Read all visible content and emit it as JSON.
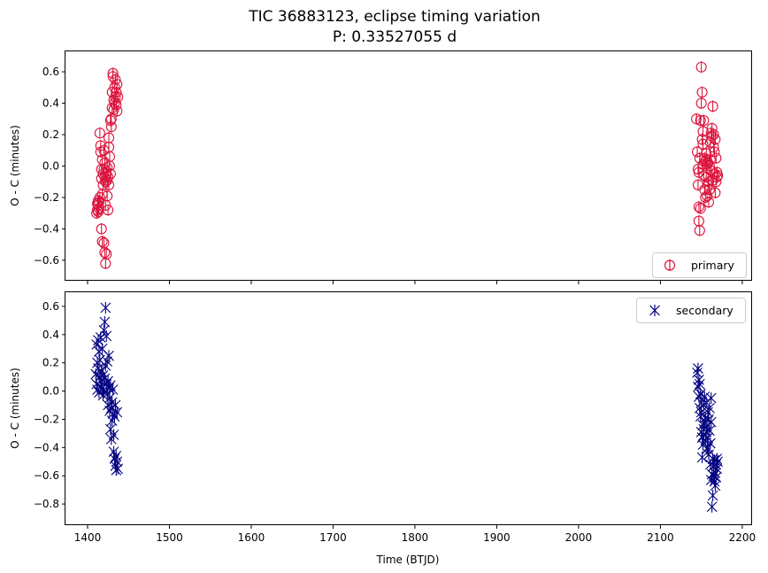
{
  "figure": {
    "title_line1": "TIC 36883123, eclipse timing variation",
    "title_line2": "P: 0.33527055 d"
  },
  "chart_data": [
    {
      "type": "scatter",
      "panel": "top",
      "ylabel": "O - C (minutes)",
      "xlabel": "",
      "xlim": [
        1373,
        2212
      ],
      "ylim": [
        -0.73,
        0.73
      ],
      "xticks": [
        1400,
        1500,
        1600,
        1700,
        1800,
        1900,
        2000,
        2100,
        2200
      ],
      "xtick_labels_shown": false,
      "yticks": [
        -0.6,
        -0.4,
        -0.2,
        0.0,
        0.2,
        0.4,
        0.6
      ],
      "ytick_labels": [
        "−0.6",
        "−0.4",
        "−0.2",
        "0.0",
        "0.2",
        "0.4",
        "0.6"
      ],
      "grid": false,
      "legend": {
        "entries": [
          "primary"
        ],
        "placement": "lower right"
      },
      "series": [
        {
          "name": "primary",
          "marker": "open-circle-errorbar",
          "color": "#dc143c",
          "points": [
            [
              1411,
              -0.3
            ],
            [
              1412,
              -0.28
            ],
            [
              1413,
              -0.25
            ],
            [
              1413,
              -0.22
            ],
            [
              1414,
              -0.27
            ],
            [
              1415,
              -0.2
            ],
            [
              1415,
              0.21
            ],
            [
              1416,
              0.13
            ],
            [
              1416,
              0.09
            ],
            [
              1417,
              -0.02
            ],
            [
              1417,
              -0.4
            ],
            [
              1418,
              -0.48
            ],
            [
              1418,
              -0.18
            ],
            [
              1419,
              -0.12
            ],
            [
              1419,
              -0.05
            ],
            [
              1420,
              -0.49
            ],
            [
              1420,
              0.1
            ],
            [
              1421,
              -0.55
            ],
            [
              1421,
              0.02
            ],
            [
              1422,
              -0.62
            ],
            [
              1422,
              -0.1
            ],
            [
              1423,
              -0.56
            ],
            [
              1423,
              -0.05
            ],
            [
              1424,
              -0.01
            ],
            [
              1424,
              -0.19
            ],
            [
              1425,
              -0.07
            ],
            [
              1425,
              -0.28
            ],
            [
              1426,
              0.12
            ],
            [
              1426,
              -0.12
            ],
            [
              1427,
              0.06
            ],
            [
              1427,
              0.0
            ],
            [
              1428,
              0.29
            ],
            [
              1428,
              -0.05
            ],
            [
              1429,
              0.3
            ],
            [
              1429,
              0.25
            ],
            [
              1430,
              0.37
            ],
            [
              1430,
              0.47
            ],
            [
              1431,
              0.57
            ],
            [
              1431,
              0.59
            ],
            [
              1432,
              0.42
            ],
            [
              1432,
              0.36
            ],
            [
              1433,
              0.5
            ],
            [
              1433,
              0.4
            ],
            [
              1434,
              0.55
            ],
            [
              1434,
              0.44
            ],
            [
              1435,
              0.47
            ],
            [
              1435,
              0.39
            ],
            [
              1436,
              0.35
            ],
            [
              1436,
              0.52
            ],
            [
              1437,
              0.44
            ],
            [
              1420,
              -0.02
            ],
            [
              1422,
              -0.25
            ],
            [
              1424,
              -0.09
            ],
            [
              1426,
              0.18
            ],
            [
              1414,
              -0.23
            ],
            [
              1413,
              -0.29
            ],
            [
              1412,
              -0.24
            ],
            [
              1417,
              -0.08
            ],
            [
              1418,
              0.04
            ],
            [
              1421,
              -0.07
            ],
            [
              2144,
              0.3
            ],
            [
              2145,
              0.09
            ],
            [
              2146,
              -0.02
            ],
            [
              2146,
              -0.12
            ],
            [
              2147,
              -0.35
            ],
            [
              2147,
              -0.26
            ],
            [
              2148,
              -0.41
            ],
            [
              2148,
              0.05
            ],
            [
              2149,
              -0.27
            ],
            [
              2149,
              0.29
            ],
            [
              2150,
              0.63
            ],
            [
              2150,
              0.4
            ],
            [
              2151,
              0.47
            ],
            [
              2151,
              0.17
            ],
            [
              2152,
              0.22
            ],
            [
              2152,
              0.01
            ],
            [
              2153,
              -0.06
            ],
            [
              2153,
              0.29
            ],
            [
              2154,
              0.05
            ],
            [
              2154,
              -0.15
            ],
            [
              2155,
              0.03
            ],
            [
              2155,
              -0.2
            ],
            [
              2156,
              0.08
            ],
            [
              2156,
              -0.07
            ],
            [
              2157,
              0.01
            ],
            [
              2157,
              -0.19
            ],
            [
              2158,
              -0.12
            ],
            [
              2158,
              0.02
            ],
            [
              2159,
              -0.23
            ],
            [
              2159,
              -0.1
            ],
            [
              2160,
              0.0
            ],
            [
              2160,
              -0.15
            ],
            [
              2161,
              0.15
            ],
            [
              2161,
              0.04
            ],
            [
              2162,
              0.21
            ],
            [
              2162,
              -0.03
            ],
            [
              2163,
              0.19
            ],
            [
              2163,
              0.24
            ],
            [
              2164,
              0.38
            ],
            [
              2164,
              -0.09
            ],
            [
              2165,
              0.2
            ],
            [
              2165,
              0.12
            ],
            [
              2166,
              0.09
            ],
            [
              2166,
              -0.05
            ],
            [
              2167,
              0.17
            ],
            [
              2167,
              -0.17
            ],
            [
              2168,
              0.05
            ],
            [
              2168,
              -0.1
            ],
            [
              2169,
              -0.04
            ],
            [
              2169,
              -0.07
            ],
            [
              2170,
              -0.06
            ],
            [
              2152,
              0.14
            ],
            [
              2156,
              0.04
            ],
            [
              2147,
              -0.04
            ]
          ]
        }
      ]
    },
    {
      "type": "scatter",
      "panel": "bottom",
      "ylabel": "O - C (minutes)",
      "xlabel": "Time (BTJD)",
      "xlim": [
        1373,
        2212
      ],
      "ylim": [
        -0.95,
        0.7
      ],
      "xticks": [
        1400,
        1500,
        1600,
        1700,
        1800,
        1900,
        2000,
        2100,
        2200
      ],
      "xtick_labels": [
        "1400",
        "1500",
        "1600",
        "1700",
        "1800",
        "1900",
        "2000",
        "2100",
        "2200"
      ],
      "yticks": [
        -0.8,
        -0.6,
        -0.4,
        -0.2,
        0.0,
        0.2,
        0.4,
        0.6
      ],
      "ytick_labels": [
        "−0.8",
        "−0.6",
        "−0.4",
        "−0.2",
        "0.0",
        "0.2",
        "0.4",
        "0.6"
      ],
      "grid": false,
      "legend": {
        "entries": [
          "secondary"
        ],
        "placement": "upper right"
      },
      "series": [
        {
          "name": "secondary",
          "marker": "x-errorbar",
          "color": "#000080",
          "points": [
            [
              1410,
              0.12
            ],
            [
              1411,
              0.33
            ],
            [
              1411,
              0.05
            ],
            [
              1412,
              0.2
            ],
            [
              1412,
              0.01
            ],
            [
              1413,
              0.36
            ],
            [
              1413,
              0.16
            ],
            [
              1414,
              0.28
            ],
            [
              1414,
              -0.01
            ],
            [
              1415,
              0.22
            ],
            [
              1415,
              0.1
            ],
            [
              1416,
              0.38
            ],
            [
              1416,
              0.03
            ],
            [
              1417,
              0.14
            ],
            [
              1417,
              0.07
            ],
            [
              1418,
              0.02
            ],
            [
              1418,
              0.3
            ],
            [
              1419,
              0.11
            ],
            [
              1419,
              -0.03
            ],
            [
              1420,
              0.43
            ],
            [
              1420,
              0.01
            ],
            [
              1421,
              0.49
            ],
            [
              1421,
              0.09
            ],
            [
              1422,
              0.59
            ],
            [
              1422,
              0.18
            ],
            [
              1423,
              0.05
            ],
            [
              1423,
              0.39
            ],
            [
              1424,
              0.21
            ],
            [
              1424,
              -0.02
            ],
            [
              1425,
              0.07
            ],
            [
              1425,
              -0.1
            ],
            [
              1426,
              0.25
            ],
            [
              1426,
              0.02
            ],
            [
              1427,
              -0.05
            ],
            [
              1427,
              -0.14
            ],
            [
              1428,
              0.04
            ],
            [
              1428,
              -0.27
            ],
            [
              1429,
              -0.12
            ],
            [
              1429,
              -0.34
            ],
            [
              1430,
              -0.21
            ],
            [
              1430,
              -0.08
            ],
            [
              1431,
              -0.16
            ],
            [
              1431,
              0.01
            ],
            [
              1432,
              -0.31
            ],
            [
              1432,
              -0.43
            ],
            [
              1433,
              -0.18
            ],
            [
              1433,
              -0.48
            ],
            [
              1434,
              -0.53
            ],
            [
              1434,
              -0.1
            ],
            [
              1435,
              -0.46
            ],
            [
              1435,
              -0.56
            ],
            [
              1436,
              -0.5
            ],
            [
              1436,
              -0.15
            ],
            [
              1437,
              -0.55
            ],
            [
              2145,
              0.13
            ],
            [
              2146,
              0.03
            ],
            [
              2146,
              0.16
            ],
            [
              2147,
              -0.04
            ],
            [
              2147,
              0.08
            ],
            [
              2148,
              -0.12
            ],
            [
              2148,
              0.05
            ],
            [
              2149,
              -0.18
            ],
            [
              2149,
              -0.02
            ],
            [
              2150,
              -0.29
            ],
            [
              2150,
              -0.08
            ],
            [
              2151,
              -0.47
            ],
            [
              2151,
              -0.33
            ],
            [
              2152,
              -0.24
            ],
            [
              2152,
              -0.38
            ],
            [
              2153,
              -0.1
            ],
            [
              2153,
              -0.31
            ],
            [
              2154,
              -0.04
            ],
            [
              2154,
              -0.22
            ],
            [
              2155,
              -0.19
            ],
            [
              2155,
              -0.35
            ],
            [
              2156,
              -0.08
            ],
            [
              2156,
              -0.29
            ],
            [
              2157,
              -0.41
            ],
            [
              2157,
              -0.25
            ],
            [
              2158,
              -0.15
            ],
            [
              2158,
              -0.33
            ],
            [
              2159,
              -0.2
            ],
            [
              2159,
              -0.45
            ],
            [
              2160,
              -0.12
            ],
            [
              2160,
              -0.28
            ],
            [
              2161,
              -0.52
            ],
            [
              2161,
              -0.37
            ],
            [
              2162,
              -0.63
            ],
            [
              2162,
              -0.05
            ],
            [
              2163,
              -0.82
            ],
            [
              2163,
              -0.59
            ],
            [
              2164,
              -0.74
            ],
            [
              2164,
              -0.48
            ],
            [
              2165,
              -0.6
            ],
            [
              2165,
              -0.53
            ],
            [
              2166,
              -0.64
            ],
            [
              2166,
              -0.49
            ],
            [
              2167,
              -0.58
            ],
            [
              2167,
              -0.67
            ],
            [
              2168,
              -0.52
            ],
            [
              2168,
              -0.61
            ],
            [
              2169,
              -0.55
            ],
            [
              2169,
              -0.48
            ],
            [
              2170,
              -0.5
            ],
            [
              2153,
              -0.27
            ],
            [
              2158,
              -0.4
            ],
            [
              2150,
              -0.15
            ],
            [
              2162,
              -0.22
            ]
          ]
        }
      ]
    }
  ]
}
